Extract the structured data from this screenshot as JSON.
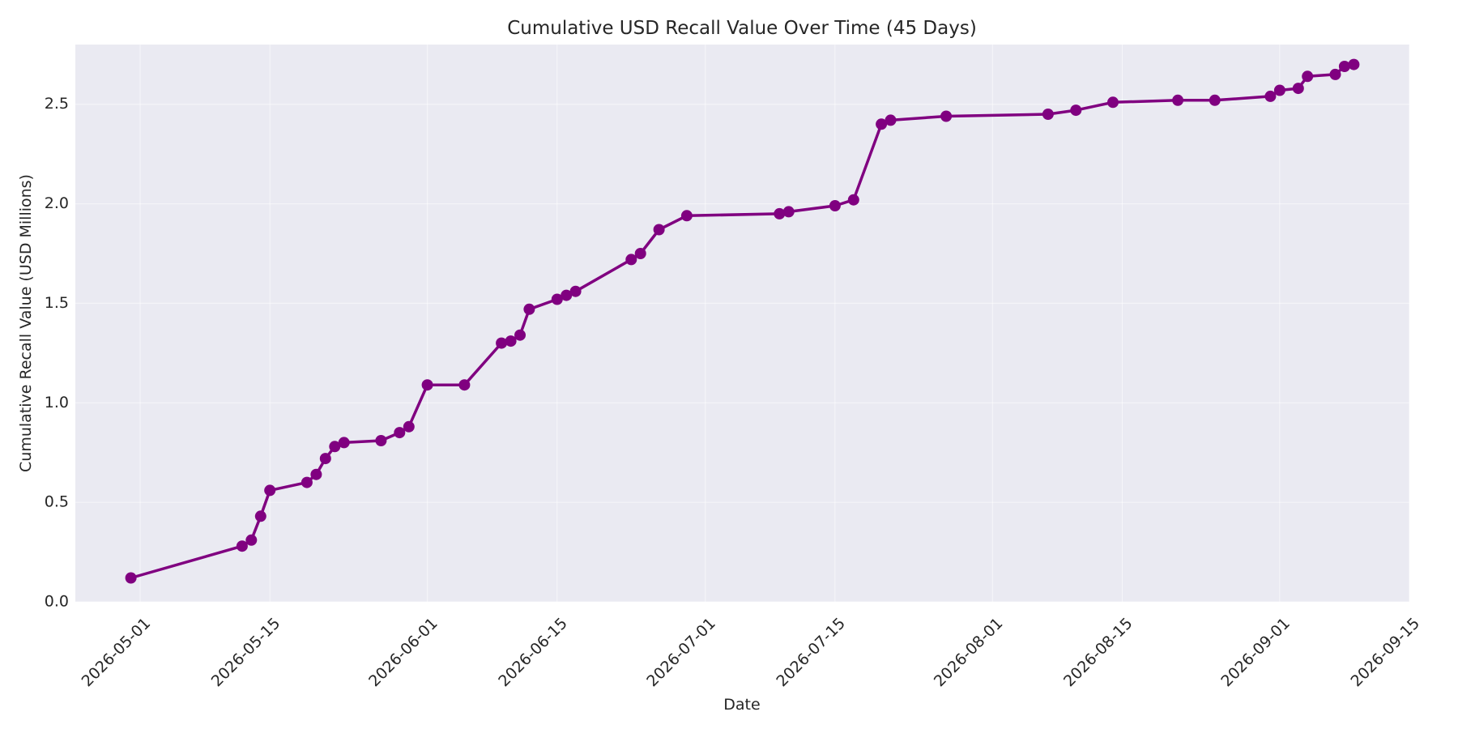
{
  "chart_data": {
    "type": "line",
    "title": "Cumulative USD Recall Value Over Time (45 Days)",
    "xlabel": "Date",
    "ylabel": "Cumulative Recall Value (USD Millions)",
    "xlim": [
      "2026-04-24",
      "2026-09-15"
    ],
    "ylim": [
      0,
      2.8
    ],
    "x_ticks": [
      "2026-05-01",
      "2026-05-15",
      "2026-06-01",
      "2026-06-15",
      "2026-07-01",
      "2026-07-15",
      "2026-08-01",
      "2026-08-15",
      "2026-09-01",
      "2026-09-15"
    ],
    "y_ticks": [
      0.0,
      0.5,
      1.0,
      1.5,
      2.0,
      2.5
    ],
    "y_tick_labels": [
      "0.0",
      "0.5",
      "1.0",
      "1.5",
      "2.0",
      "2.5"
    ],
    "grid": true,
    "colors": {
      "line": "#800080",
      "plot_bg": "#eaeaf2",
      "grid": "#ffffff"
    },
    "x": [
      "2026-04-30",
      "2026-05-12",
      "2026-05-13",
      "2026-05-14",
      "2026-05-15",
      "2026-05-19",
      "2026-05-20",
      "2026-05-21",
      "2026-05-22",
      "2026-05-23",
      "2026-05-27",
      "2026-05-29",
      "2026-05-30",
      "2026-06-01",
      "2026-06-05",
      "2026-06-09",
      "2026-06-10",
      "2026-06-11",
      "2026-06-12",
      "2026-06-15",
      "2026-06-16",
      "2026-06-17",
      "2026-06-23",
      "2026-06-24",
      "2026-06-26",
      "2026-06-29",
      "2026-07-09",
      "2026-07-10",
      "2026-07-15",
      "2026-07-17",
      "2026-07-20",
      "2026-07-21",
      "2026-07-27",
      "2026-08-07",
      "2026-08-10",
      "2026-08-14",
      "2026-08-21",
      "2026-08-25",
      "2026-08-31",
      "2026-09-01",
      "2026-09-03",
      "2026-09-04",
      "2026-09-07",
      "2026-09-08",
      "2026-09-09"
    ],
    "series": [
      {
        "values": [
          0.12,
          0.28,
          0.31,
          0.43,
          0.56,
          0.6,
          0.64,
          0.72,
          0.78,
          0.8,
          0.81,
          0.85,
          0.88,
          1.09,
          1.09,
          1.3,
          1.31,
          1.34,
          1.47,
          1.52,
          1.54,
          1.56,
          1.72,
          1.75,
          1.87,
          1.94,
          1.95,
          1.96,
          1.99,
          2.02,
          2.4,
          2.42,
          2.44,
          2.45,
          2.47,
          2.51,
          2.52,
          2.52,
          2.54,
          2.57,
          2.58,
          2.64,
          2.65,
          2.69,
          2.7
        ]
      }
    ]
  }
}
